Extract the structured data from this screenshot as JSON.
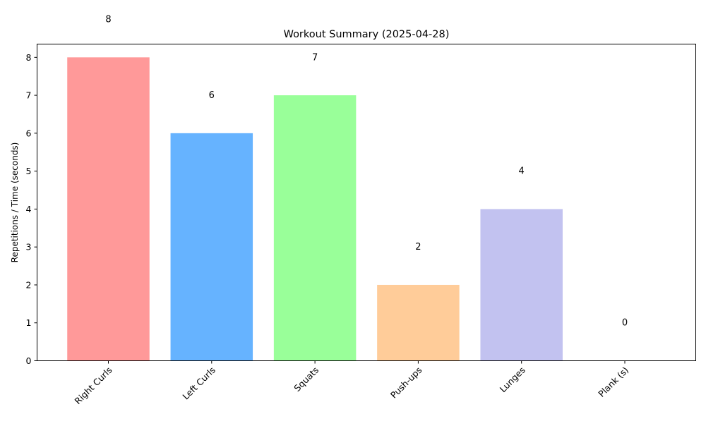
{
  "chart_data": {
    "type": "bar",
    "title": "Workout Summary (2025-04-28)",
    "xlabel": "",
    "ylabel": "Repetitions / Time (seconds)",
    "categories": [
      "Right Curls",
      "Left Curls",
      "Squats",
      "Push-ups",
      "Lunges",
      "Plank (s)"
    ],
    "values": [
      8,
      6,
      7,
      2,
      4,
      0
    ],
    "colors": [
      "#ff9999",
      "#66b3ff",
      "#99ff99",
      "#ffcc99",
      "#c2c2f0",
      "#ffb3e6"
    ],
    "ylim": [
      0,
      8.35
    ],
    "yticks": [
      0,
      1,
      2,
      3,
      4,
      5,
      6,
      7,
      8
    ],
    "grid": false,
    "data_labels": true
  }
}
